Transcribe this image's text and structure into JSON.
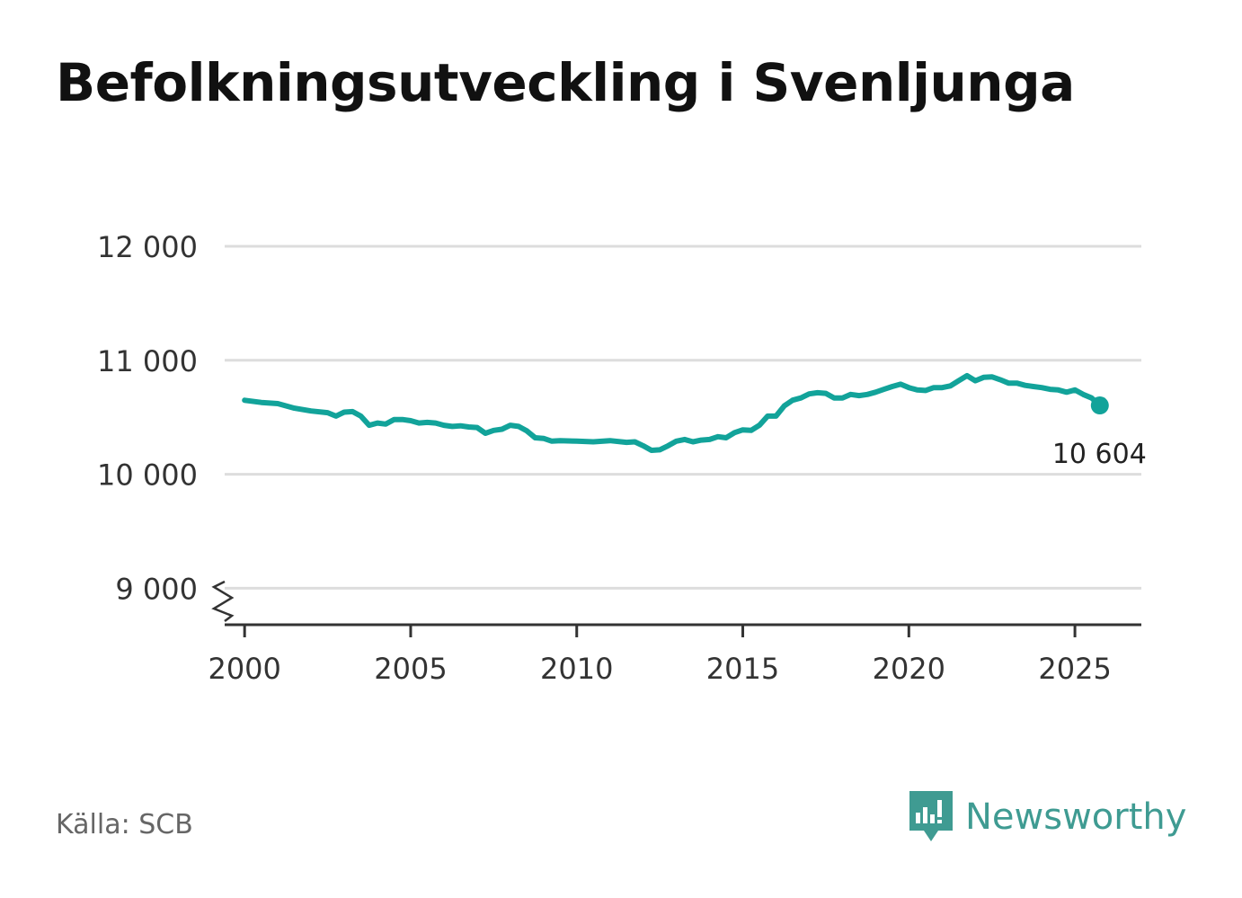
{
  "title": "Befolkningsutveckling i Svenljunga",
  "source": "Källa: SCB",
  "brand": {
    "name": "Newsworthy",
    "icon": "newsworthy-logo-icon",
    "color": "#3f9b92"
  },
  "colors": {
    "line": "#12a39a",
    "grid": "#dddddd",
    "axis": "#333333",
    "text": "#333333"
  },
  "chart_data": {
    "type": "line",
    "title": "Befolkningsutveckling i Svenljunga",
    "xlabel": "",
    "ylabel": "",
    "xlim": [
      1999.4,
      2027
    ],
    "ylim": [
      8680,
      12000
    ],
    "axis_break": true,
    "grid": true,
    "x_ticks": [
      2000,
      2005,
      2010,
      2015,
      2020,
      2025
    ],
    "x_tick_labels": [
      "2000",
      "2005",
      "2010",
      "2015",
      "2020",
      "2025"
    ],
    "y_ticks": [
      9000,
      10000,
      11000,
      12000
    ],
    "y_tick_labels": [
      "9 000",
      "10 000",
      "11 000",
      "12 000"
    ],
    "end_label": "10 604",
    "series": [
      {
        "x": [
          2000.0,
          2000.5,
          2001.0,
          2001.5,
          2002.0,
          2002.5,
          2002.75,
          2003.0,
          2003.25,
          2003.5,
          2003.75,
          2004.0,
          2004.25,
          2004.5,
          2004.75,
          2005.0,
          2005.25,
          2005.5,
          2005.75,
          2006.0,
          2006.25,
          2006.5,
          2006.75,
          2007.0,
          2007.25,
          2007.5,
          2007.75,
          2008.0,
          2008.25,
          2008.5,
          2008.75,
          2009.0,
          2009.25,
          2009.5,
          2010.0,
          2010.5,
          2011.0,
          2011.5,
          2011.75,
          2012.0,
          2012.25,
          2012.5,
          2012.75,
          2013.0,
          2013.25,
          2013.5,
          2013.75,
          2014.0,
          2014.25,
          2014.5,
          2014.75,
          2015.0,
          2015.25,
          2015.5,
          2015.75,
          2016.0,
          2016.25,
          2016.5,
          2016.75,
          2017.0,
          2017.25,
          2017.5,
          2017.75,
          2018.0,
          2018.25,
          2018.5,
          2018.75,
          2019.0,
          2019.25,
          2019.5,
          2019.75,
          2020.0,
          2020.25,
          2020.5,
          2020.75,
          2021.0,
          2021.25,
          2021.5,
          2021.75,
          2022.0,
          2022.25,
          2022.5,
          2022.75,
          2023.0,
          2023.25,
          2023.5,
          2023.75,
          2024.0,
          2024.25,
          2024.5,
          2024.75,
          2025.0,
          2025.25,
          2025.5,
          2025.75
        ],
        "y": [
          10649,
          10630,
          10620,
          10580,
          10555,
          10540,
          10510,
          10545,
          10550,
          10510,
          10430,
          10450,
          10440,
          10480,
          10480,
          10470,
          10450,
          10455,
          10450,
          10430,
          10420,
          10425,
          10415,
          10410,
          10360,
          10385,
          10395,
          10430,
          10420,
          10380,
          10320,
          10315,
          10290,
          10295,
          10290,
          10285,
          10295,
          10280,
          10285,
          10250,
          10210,
          10215,
          10250,
          10290,
          10305,
          10285,
          10300,
          10305,
          10330,
          10320,
          10365,
          10390,
          10385,
          10430,
          10510,
          10510,
          10600,
          10650,
          10670,
          10705,
          10715,
          10710,
          10670,
          10670,
          10700,
          10690,
          10700,
          10720,
          10745,
          10770,
          10790,
          10760,
          10740,
          10735,
          10760,
          10760,
          10775,
          10820,
          10865,
          10820,
          10850,
          10855,
          10830,
          10800,
          10800,
          10780,
          10770,
          10760,
          10745,
          10740,
          10720,
          10740,
          10700,
          10670,
          10604
        ]
      }
    ]
  }
}
